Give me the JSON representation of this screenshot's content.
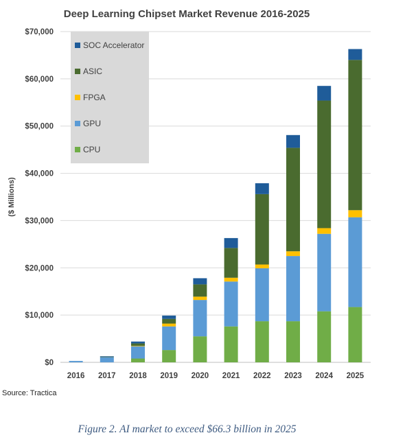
{
  "chart_data": {
    "type": "bar",
    "stacked": true,
    "title": "Deep Learning Chipset Market Revenue 2016-2025",
    "xlabel": "",
    "ylabel": "($ Millions)",
    "ylim": [
      0,
      70000
    ],
    "y_ticks": [
      0,
      10000,
      20000,
      30000,
      40000,
      50000,
      60000,
      70000
    ],
    "y_tick_labels": [
      "$0",
      "$10,000",
      "$20,000",
      "$30,000",
      "$40,000",
      "$50,000",
      "$60,000",
      "$70,000"
    ],
    "grid": true,
    "legend_position": "top-left",
    "categories": [
      "2016",
      "2017",
      "2018",
      "2019",
      "2020",
      "2021",
      "2022",
      "2023",
      "2024",
      "2025"
    ],
    "series": [
      {
        "name": "CPU",
        "color": "#70ad47",
        "values": [
          0,
          0,
          800,
          2600,
          5500,
          7600,
          8700,
          8700,
          10800,
          11700
        ]
      },
      {
        "name": "GPU",
        "color": "#5b9bd5",
        "values": [
          300,
          1100,
          2600,
          5000,
          7700,
          9500,
          11200,
          13800,
          16400,
          19000
        ]
      },
      {
        "name": "FPGA",
        "color": "#ffc000",
        "values": [
          0,
          0,
          100,
          600,
          700,
          800,
          800,
          1000,
          1200,
          1500
        ]
      },
      {
        "name": "ASIC",
        "color": "#4a6b2f",
        "values": [
          0,
          100,
          500,
          1000,
          2600,
          6300,
          14900,
          21900,
          27000,
          31800
        ]
      },
      {
        "name": "SOC Accelerator",
        "color": "#1f5c99",
        "values": [
          0,
          100,
          400,
          700,
          1300,
          2100,
          2300,
          2700,
          3100,
          2300
        ]
      }
    ],
    "legend_order": [
      "SOC Accelerator",
      "ASIC",
      "FPGA",
      "GPU",
      "CPU"
    ]
  },
  "source_text": "Source: Tractica",
  "caption": "Figure 2. AI market to exceed $66.3 billion in 2025"
}
